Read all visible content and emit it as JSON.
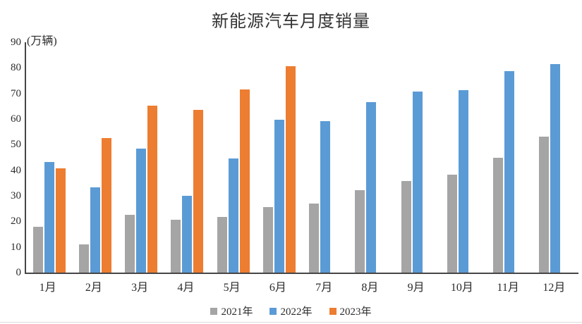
{
  "chart_data": {
    "type": "bar",
    "title": "新能源汽车月度销量",
    "ylabel": "(万辆)",
    "xlabel": "",
    "categories": [
      "1月",
      "2月",
      "3月",
      "4月",
      "5月",
      "6月",
      "7月",
      "8月",
      "9月",
      "10月",
      "11月",
      "12月"
    ],
    "series": [
      {
        "name": "2021年",
        "color": "#A5A5A5",
        "values": [
          17.9,
          11.0,
          22.6,
          20.6,
          21.7,
          25.6,
          27.1,
          32.1,
          35.7,
          38.3,
          45.0,
          53.1
        ]
      },
      {
        "name": "2022年",
        "color": "#5B9BD5",
        "values": [
          43.1,
          33.4,
          48.4,
          29.9,
          44.7,
          59.6,
          59.3,
          66.6,
          70.8,
          71.4,
          78.6,
          81.4
        ]
      },
      {
        "name": "2023年",
        "color": "#ED7D31",
        "values": [
          40.8,
          52.5,
          65.3,
          63.6,
          71.7,
          80.6,
          null,
          null,
          null,
          null,
          null,
          null
        ]
      }
    ],
    "ylim": [
      0,
      90
    ],
    "ytick_interval": 10,
    "ytick_labels": [
      "90",
      "80",
      "70",
      "60",
      "50",
      "40",
      "30",
      "20",
      "10",
      "0"
    ],
    "grid": false,
    "legend_position": "bottom",
    "axis_color": "#464646"
  }
}
